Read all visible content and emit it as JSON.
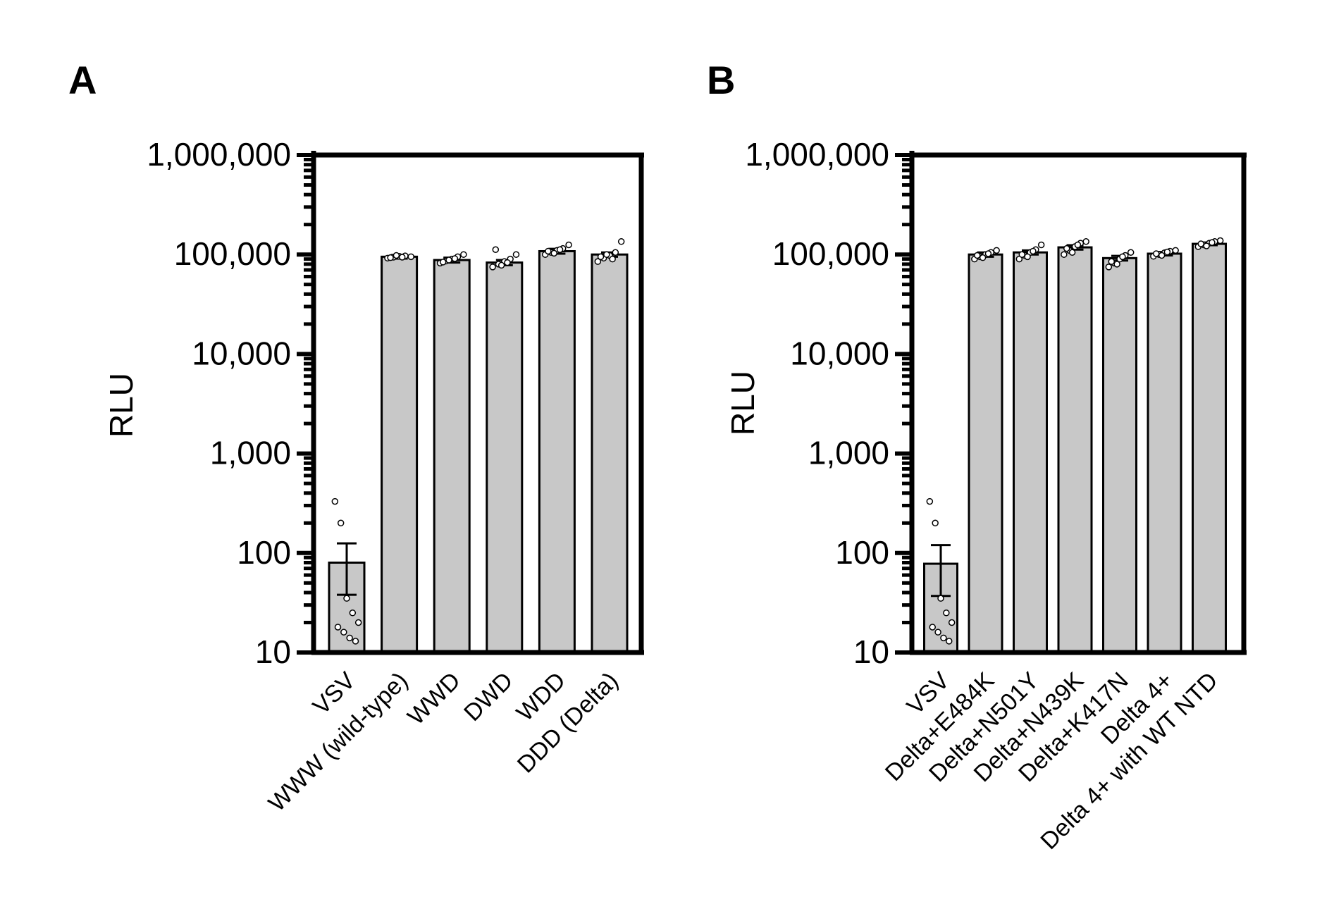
{
  "chart_data": [
    {
      "type": "bar",
      "panel": "A",
      "ylabel": "RLU",
      "yscale": "log",
      "ylim": [
        10,
        1000000
      ],
      "y_ticks": [
        "1,000,000",
        "100,000",
        "10,000",
        "1,000",
        "100",
        "10"
      ],
      "categories": [
        "VSV",
        "WWW (wild-type)",
        "WWD",
        "DWD",
        "WDD",
        "DDD (Delta)"
      ],
      "values": [
        80,
        95000,
        88000,
        83000,
        108000,
        100000
      ],
      "error_low": [
        38,
        91000,
        83000,
        78000,
        102000,
        95000
      ],
      "error_high": [
        125,
        99000,
        93000,
        88000,
        114000,
        105000
      ],
      "points": [
        [
          330,
          200,
          35,
          25,
          20,
          18,
          16,
          14,
          13
        ],
        [
          92000,
          94000,
          96000,
          97000,
          95000,
          93000,
          98000,
          94000
        ],
        [
          82000,
          86000,
          90000,
          95000,
          100000,
          84000,
          88000,
          91000
        ],
        [
          75000,
          80000,
          85000,
          90000,
          100000,
          112000,
          78000,
          83000
        ],
        [
          100000,
          105000,
          110000,
          115000,
          125000,
          108000,
          103000,
          112000
        ],
        [
          85000,
          92000,
          98000,
          105000,
          135000,
          95000,
          100000,
          90000
        ]
      ]
    },
    {
      "type": "bar",
      "panel": "B",
      "ylabel": "RLU",
      "yscale": "log",
      "ylim": [
        10,
        1000000
      ],
      "y_ticks": [
        "1,000,000",
        "100,000",
        "10,000",
        "1,000",
        "100",
        "10"
      ],
      "categories": [
        "VSV",
        "Delta+E484K",
        "Delta+N501Y",
        "Delta+N439K",
        "Delta+K417N",
        "Delta 4+",
        "Delta 4+ with WT NTD"
      ],
      "values": [
        78,
        100000,
        105000,
        118000,
        92000,
        102000,
        128000
      ],
      "error_low": [
        37,
        95000,
        100000,
        112000,
        87000,
        98000,
        124000
      ],
      "error_high": [
        120,
        105000,
        110000,
        124000,
        97000,
        106000,
        132000
      ],
      "points": [
        [
          330,
          200,
          35,
          25,
          20,
          18,
          16,
          14,
          13
        ],
        [
          90000,
          95000,
          100000,
          105000,
          110000,
          98000,
          93000,
          102000
        ],
        [
          90000,
          98000,
          105000,
          112000,
          125000,
          100000,
          95000,
          108000
        ],
        [
          100000,
          110000,
          120000,
          130000,
          135000,
          115000,
          105000,
          125000
        ],
        [
          75000,
          82000,
          90000,
          98000,
          105000,
          85000,
          80000,
          95000
        ],
        [
          96000,
          100000,
          104000,
          108000,
          110000,
          102000,
          98000,
          106000
        ],
        [
          120000,
          125000,
          130000,
          135000,
          138000,
          128000,
          122000,
          132000
        ]
      ]
    }
  ],
  "colors": {
    "bar_fill": "#c8c8c8",
    "stroke": "#000000",
    "point_fill": "#ffffff"
  }
}
